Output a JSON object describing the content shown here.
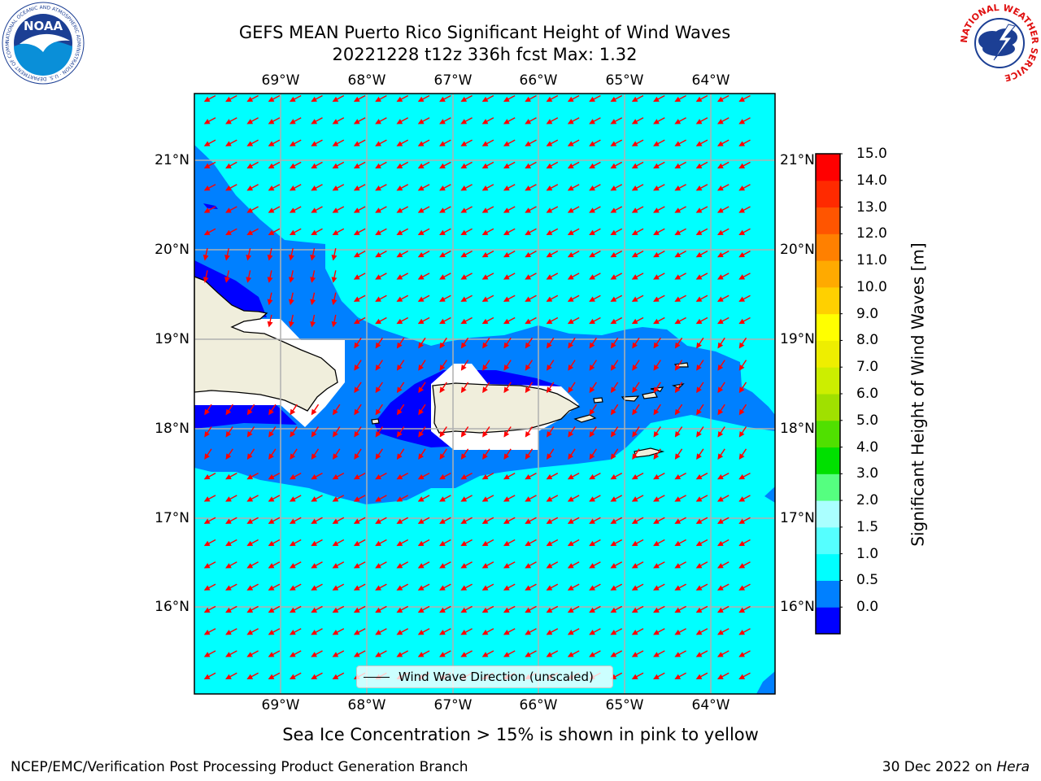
{
  "header": {
    "title_line1": "GEFS MEAN Puerto Rico Significant Height of Wind Waves",
    "title_line2": "20221228 t12z 336h fcst   Max: 1.32",
    "noaa_logo": {
      "icon": "noaa-logo",
      "text": "NOAA",
      "ring_text": "NATIONAL OCEANIC AND ATMOSPHERIC ADMINISTRATION · U.S. DEPARTMENT OF COMMERCE"
    },
    "nws_logo": {
      "icon": "nws-logo",
      "ring_text": "NATIONAL WEATHER SERVICE"
    }
  },
  "map": {
    "lon_labels": [
      "69°W",
      "68°W",
      "67°W",
      "66°W",
      "65°W",
      "64°W"
    ],
    "lat_labels": [
      "21°N",
      "20°N",
      "19°N",
      "18°N",
      "17°N",
      "16°N"
    ],
    "colors": {
      "sea_cyan": "#00ffff",
      "mid_blue": "#0080ff",
      "deep_blue": "#0000ff",
      "land": "#f0eedc",
      "arrow": "#ff0000",
      "grid": "#b0b0b0"
    },
    "legend": {
      "label": "Wind Wave Direction (unscaled)"
    }
  },
  "colorbar": {
    "ticks": [
      "15.0",
      "14.0",
      "13.0",
      "12.0",
      "11.0",
      "10.0",
      "9.0",
      "8.0",
      "7.0",
      "6.0",
      "5.0",
      "4.0",
      "3.0",
      "2.0",
      "1.5",
      "1.0",
      "0.5",
      "0.0"
    ],
    "colors": [
      "#0000ff",
      "#0080ff",
      "#00ffff",
      "#55ffff",
      "#aaffff",
      "#55ff80",
      "#00e000",
      "#50e000",
      "#a0e000",
      "#ccee00",
      "#eeee00",
      "#ffff00",
      "#ffd000",
      "#ffaa00",
      "#ff8000",
      "#ff5500",
      "#ff2a00",
      "#ff0000"
    ],
    "label": "Significant Height of Wind Waves [m]"
  },
  "notes": {
    "sea_ice": "Sea Ice Concentration > 15% is shown in pink to yellow"
  },
  "footer": {
    "left": "NCEP/EMC/Verification Post Processing Product Generation Branch",
    "date": "30 Dec 2022 on",
    "machine": "Hera"
  }
}
